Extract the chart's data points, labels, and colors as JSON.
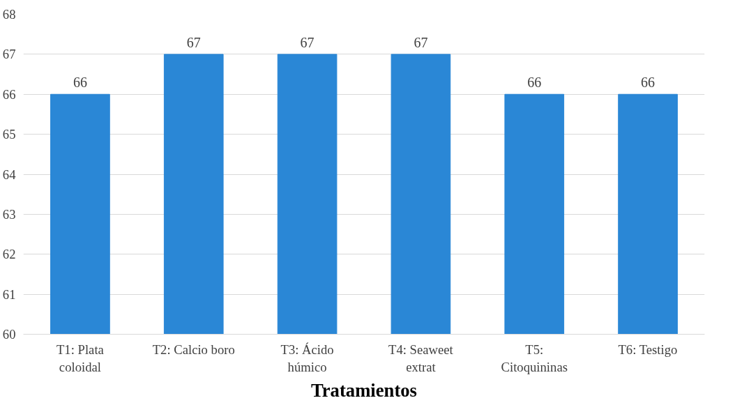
{
  "chart_data": {
    "type": "bar",
    "xlabel": "Tratamientos",
    "categories": [
      "T1: Plata coloidal",
      "T2: Calcio boro",
      "T3: Ácido húmico",
      "T4: Seaweet extrat",
      "T5: Citoquininas",
      "T6: Testigo"
    ],
    "values": [
      66,
      67,
      67,
      67,
      66,
      66
    ],
    "color": "#2a87d6",
    "ylim": [
      60,
      68
    ],
    "yticks": [
      60,
      61,
      62,
      63,
      64,
      65,
      66,
      67,
      68
    ],
    "grid": "y",
    "data_labels": true
  }
}
